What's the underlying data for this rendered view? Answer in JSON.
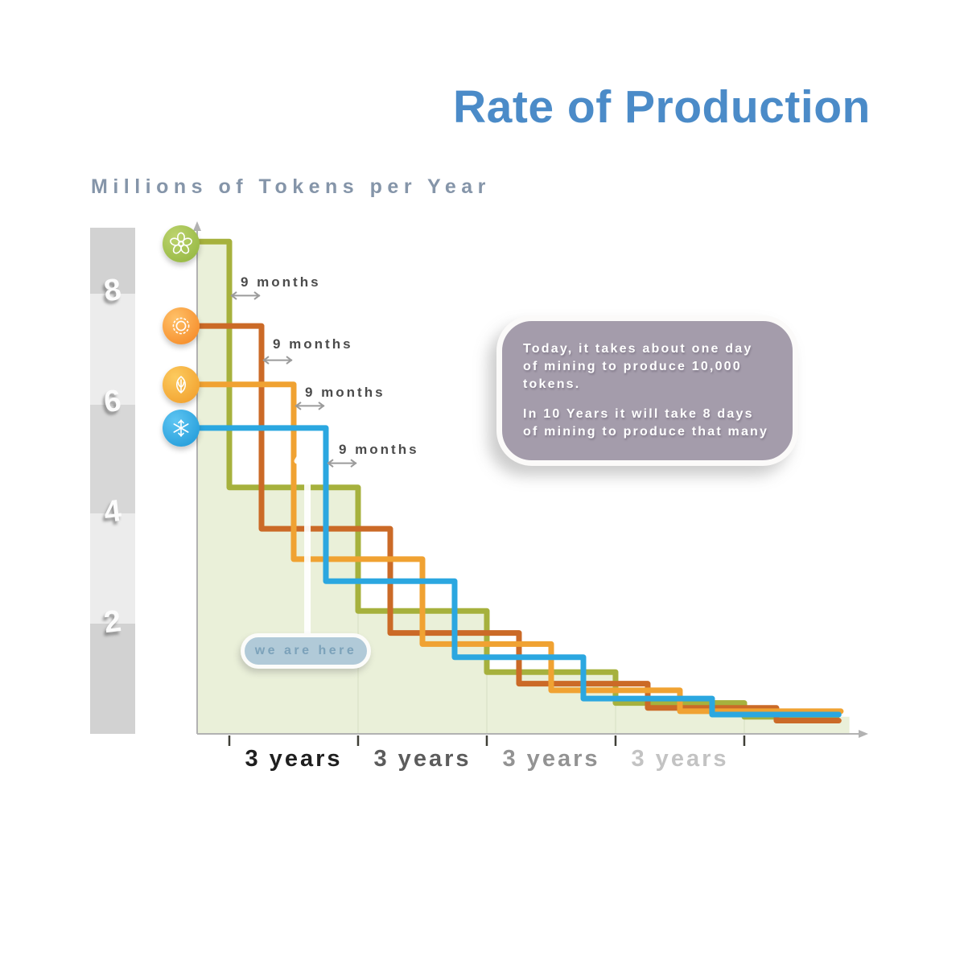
{
  "header": {
    "title": "Rate of Production",
    "subtitle": "Millions of Tokens per Year"
  },
  "y_axis": {
    "labels": [
      "8",
      "6",
      "4",
      "2"
    ]
  },
  "x_axis": {
    "labels": [
      "3 years",
      "3 years",
      "3 years",
      "3 years"
    ]
  },
  "annotations": {
    "nine_months": [
      "9 months",
      "9 months",
      "9 months",
      "9 months"
    ],
    "we_are_here": "we are here"
  },
  "info_box": {
    "para1": "Today, it takes about one day of mining to produce 10,000 tokens.",
    "para2": "In 10 Years it will take 8 days of mining to produce that many"
  },
  "icons": [
    "spring-flower-icon",
    "summer-sun-icon",
    "autumn-leaf-icon",
    "winter-snowflake-icon"
  ],
  "colors": {
    "title_blue": "#4b8bc8",
    "subtitle_gray_blue": "#8595a9",
    "spring_line": "#a6b13d",
    "summer_line": "#cb6a27",
    "autumn_line": "#f0a232",
    "winter_line": "#2ba7e0",
    "area_fill": "#eaf0d9",
    "info_box_bg": "#a49cab",
    "pill_bg": "#b1cad8"
  },
  "chart_data": {
    "type": "line",
    "subtype": "step-down-decay",
    "title": "Rate of Production",
    "ylabel": "Millions of Tokens per Year",
    "xlabel": "years",
    "ylim": [
      0,
      9.2
    ],
    "xlim": [
      0,
      15.5
    ],
    "y_ticks": [
      2,
      4,
      6,
      8
    ],
    "x_tick_years": [
      0.75,
      3.75,
      6.75,
      9.75,
      12.75
    ],
    "x_tick_interval_label": "3 years",
    "x_tick_label_colors": [
      "#1f1f1f",
      "#5c5c5c",
      "#939393",
      "#c3c3c3"
    ],
    "halving_period": "3 years",
    "series_stagger": "9 months",
    "grid": false,
    "fill_under_series": "spring",
    "fill_end_year": 15.2,
    "series": [
      {
        "name": "spring",
        "icon": "flower",
        "color": "#a6b13d",
        "start_value": 8.93,
        "drop_years": [
          0.75,
          3.75,
          6.75,
          9.75,
          12.75
        ],
        "values_after_drops": [
          4.47,
          2.23,
          1.12,
          0.56,
          0.31
        ],
        "end_year": 14.9
      },
      {
        "name": "summer",
        "icon": "sun",
        "color": "#cb6a27",
        "start_value": 7.4,
        "drop_years": [
          1.5,
          4.5,
          7.5,
          10.5,
          13.5
        ],
        "values_after_drops": [
          3.72,
          1.83,
          0.91,
          0.47,
          0.24
        ],
        "end_year": 14.95
      },
      {
        "name": "autumn",
        "icon": "leaf",
        "color": "#f0a232",
        "start_value": 6.34,
        "drop_years": [
          2.25,
          5.25,
          8.25,
          11.25
        ],
        "values_after_drops": [
          3.17,
          1.63,
          0.79,
          0.41
        ],
        "end_year": 15.0
      },
      {
        "name": "winter",
        "icon": "snowflake",
        "color": "#2ba7e0",
        "start_value": 5.55,
        "drop_years": [
          3.0,
          6.0,
          9.0,
          12.0
        ],
        "values_after_drops": [
          2.77,
          1.39,
          0.64,
          0.35
        ],
        "end_year": 14.95
      }
    ],
    "stagger_arrows": [
      {
        "label": "9 months",
        "from_year": 0.75,
        "to_year": 1.5,
        "at_value": 7.95
      },
      {
        "label": "9 months",
        "from_year": 1.5,
        "to_year": 2.25,
        "at_value": 6.78
      },
      {
        "label": "9 months",
        "from_year": 2.25,
        "to_year": 3.0,
        "at_value": 5.95
      },
      {
        "label": "9 months",
        "from_year": 3.0,
        "to_year": 3.75,
        "at_value": 4.91
      }
    ],
    "we_are_here_marker": {
      "at_year": 2.57,
      "arrow_from_value": 1.78,
      "arrow_to_value": 5.27
    }
  }
}
